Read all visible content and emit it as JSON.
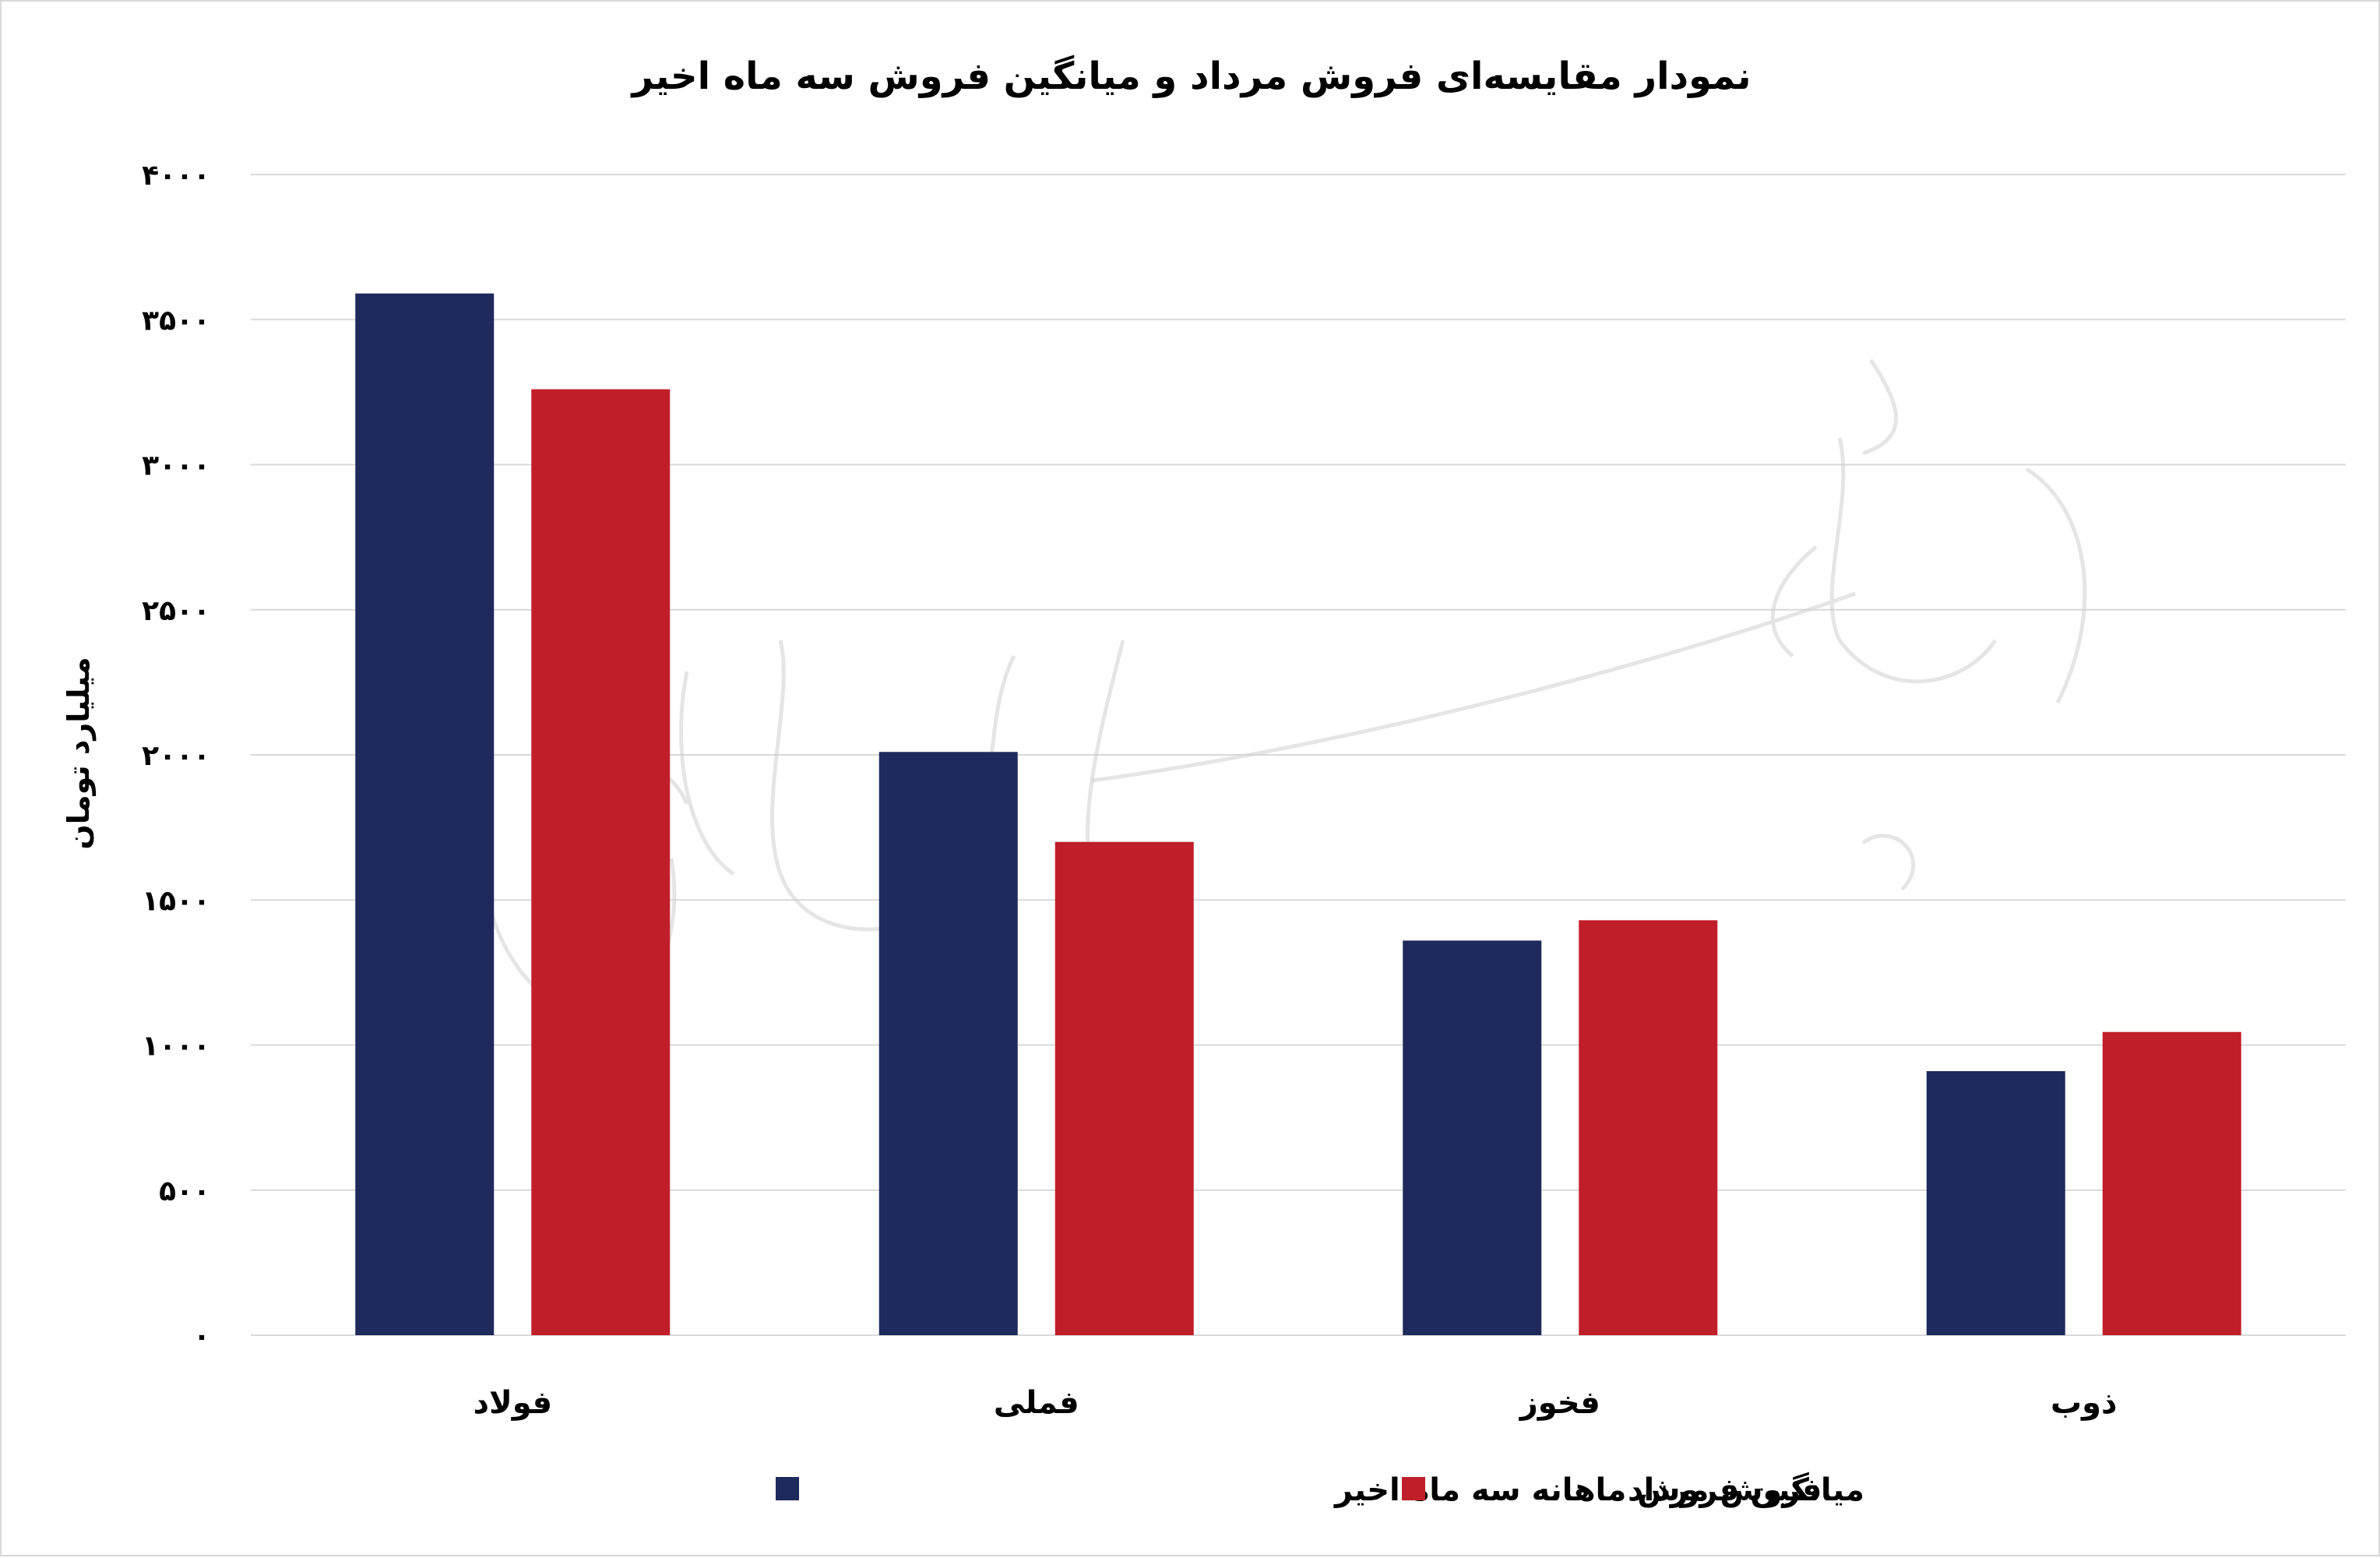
{
  "chart_data": {
    "type": "bar",
    "title": "نمودار مقایسه‌ای فروش مرداد و میانگین فروش سه ماه اخیر",
    "xlabel": "",
    "ylabel": "میلیارد تومان",
    "ylim": [
      0,
      4000
    ],
    "yticks": [
      0,
      500,
      1000,
      1500,
      2000,
      2500,
      3000,
      3500,
      4000
    ],
    "ytick_labels": [
      "۰",
      "۵۰۰",
      "۱۰۰۰",
      "۱۵۰۰",
      "۲۰۰۰",
      "۲۵۰۰",
      "۳۰۰۰",
      "۳۵۰۰",
      "۴۰۰۰"
    ],
    "grid": true,
    "legend_position": "bottom",
    "categories": [
      "فولاد",
      "فملی",
      "فخوز",
      "ذوب"
    ],
    "series": [
      {
        "name": "میانگین فروش ماهانه سه ماه اخیر",
        "color": "#1f2a5c",
        "values": [
          3590,
          2010,
          1360,
          910
        ]
      },
      {
        "name": "فروش مرداد",
        "color": "#c01f2a",
        "values": [
          3260,
          1700,
          1430,
          1045
        ]
      }
    ]
  }
}
